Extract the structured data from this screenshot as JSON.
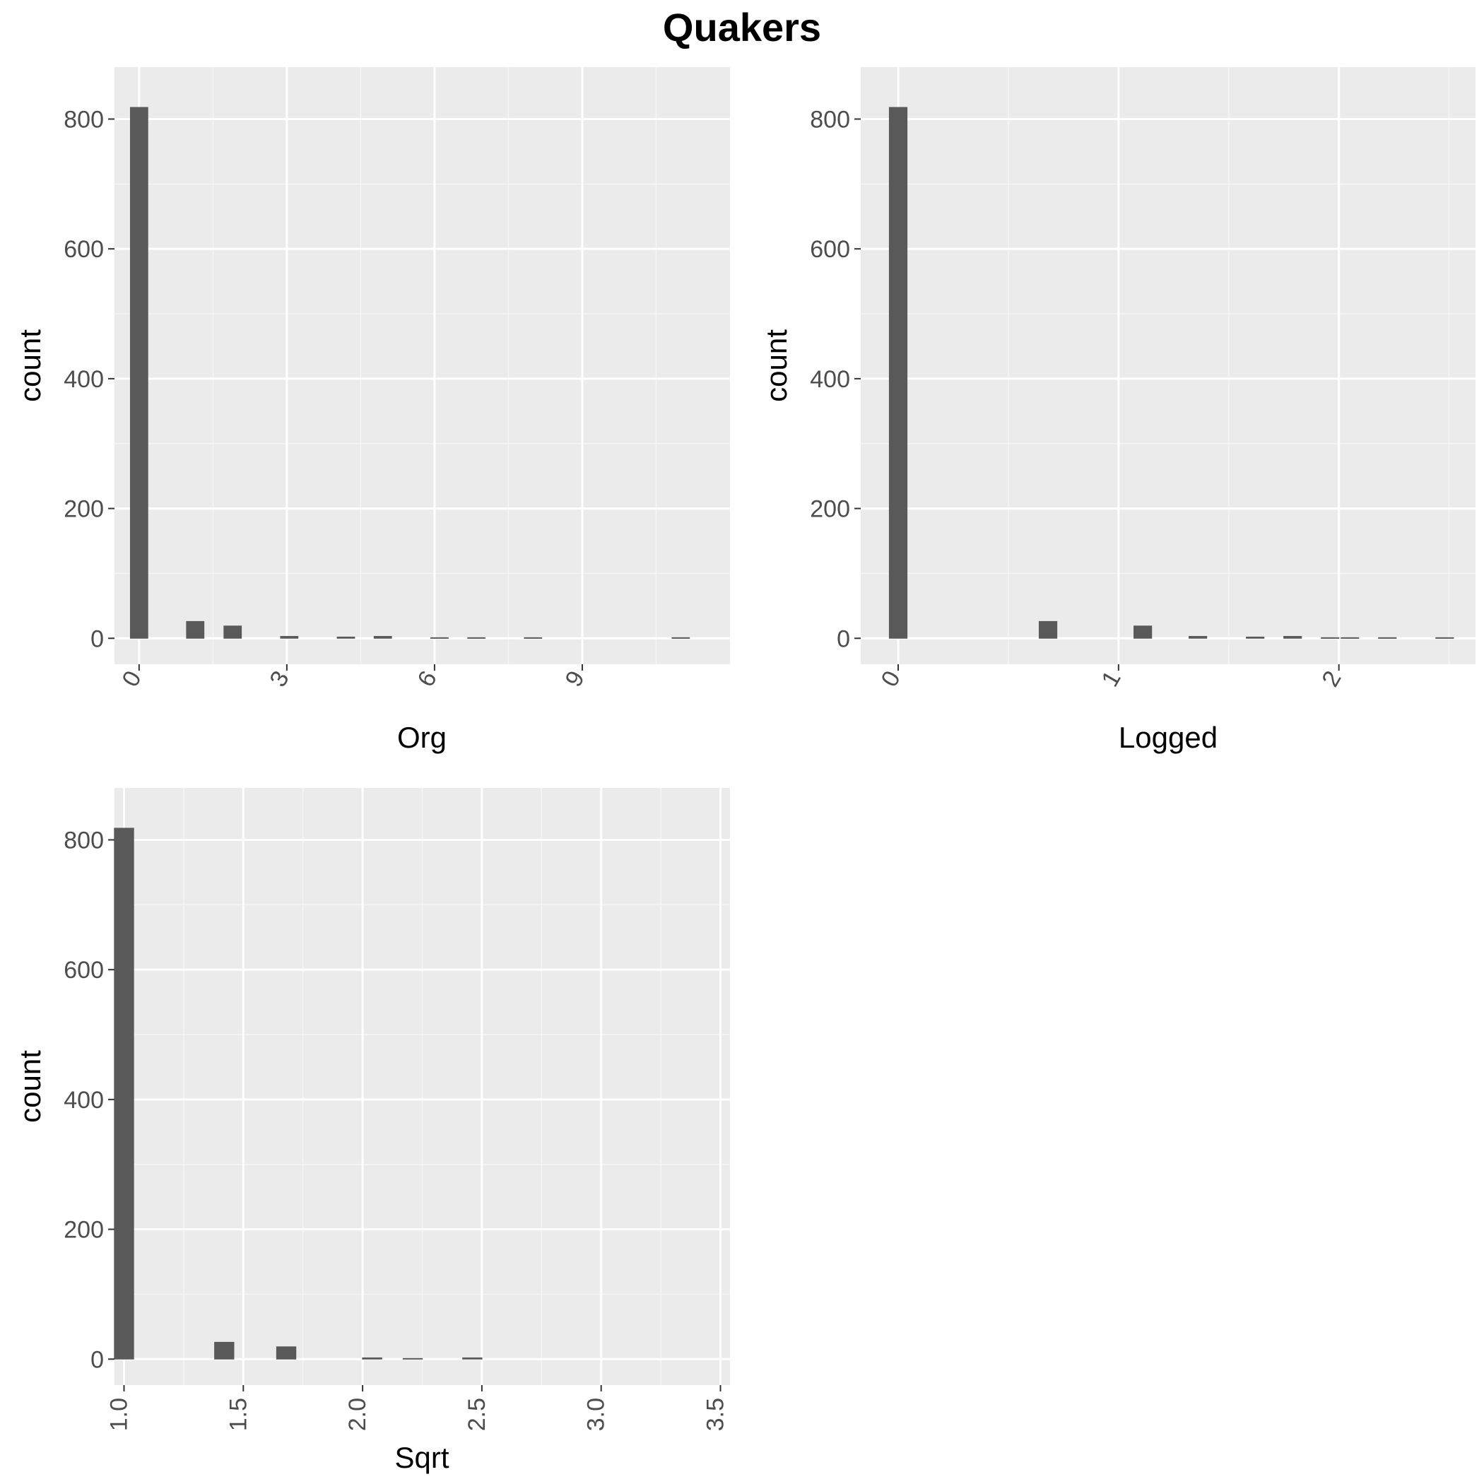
{
  "figure": {
    "title": "Quakers"
  },
  "chart_data": [
    {
      "type": "bar",
      "xlabel": "Org",
      "ylabel": "count",
      "xlim": [
        -0.5,
        12.0
      ],
      "ylim": [
        -40,
        880
      ],
      "x_ticks": [
        0,
        3,
        6,
        9
      ],
      "x_tick_labels": [
        "0",
        "3",
        "6",
        "9"
      ],
      "x_tick_rotation": 60,
      "y_ticks": [
        0,
        200,
        400,
        600,
        800
      ],
      "y_tick_labels": [
        "0",
        "200",
        "400",
        "600",
        "800"
      ],
      "grid": true,
      "bar_width": 0.37,
      "bars": [
        {
          "x": 0,
          "count": 818
        },
        {
          "x": 1.14,
          "count": 26
        },
        {
          "x": 1.9,
          "count": 19
        },
        {
          "x": 3.05,
          "count": 3
        },
        {
          "x": 4.2,
          "count": 2
        },
        {
          "x": 4.95,
          "count": 3
        },
        {
          "x": 6.1,
          "count": 1
        },
        {
          "x": 6.85,
          "count": 1
        },
        {
          "x": 8.0,
          "count": 1
        },
        {
          "x": 11.0,
          "count": 1
        }
      ]
    },
    {
      "type": "bar",
      "xlabel": "Logged",
      "ylabel": "count",
      "xlim": [
        -0.17,
        2.62
      ],
      "ylim": [
        -40,
        880
      ],
      "x_ticks": [
        0,
        1,
        2
      ],
      "x_tick_labels": [
        "0",
        "1",
        "2"
      ],
      "x_tick_rotation": 60,
      "y_ticks": [
        0,
        200,
        400,
        600,
        800
      ],
      "y_tick_labels": [
        "0",
        "200",
        "400",
        "600",
        "800"
      ],
      "grid": true,
      "bar_width": 0.084,
      "bars": [
        {
          "x": 0,
          "count": 818
        },
        {
          "x": 0.68,
          "count": 26
        },
        {
          "x": 1.11,
          "count": 19
        },
        {
          "x": 1.36,
          "count": 3
        },
        {
          "x": 1.62,
          "count": 2
        },
        {
          "x": 1.79,
          "count": 3
        },
        {
          "x": 1.96,
          "count": 1
        },
        {
          "x": 2.05,
          "count": 1
        },
        {
          "x": 2.22,
          "count": 1
        },
        {
          "x": 2.48,
          "count": 1
        }
      ]
    },
    {
      "type": "bar",
      "xlabel": "Sqrt",
      "ylabel": "count",
      "xlim": [
        0.96,
        3.54
      ],
      "ylim": [
        -40,
        880
      ],
      "x_ticks": [
        1.0,
        1.5,
        2.0,
        2.5,
        3.0,
        3.5
      ],
      "x_tick_labels": [
        "1.0",
        "1.5",
        "2.0",
        "2.5",
        "3.0",
        "3.5"
      ],
      "x_tick_rotation": 90,
      "y_ticks": [
        0,
        200,
        400,
        600,
        800
      ],
      "y_tick_labels": [
        "0",
        "200",
        "400",
        "600",
        "800"
      ],
      "grid": true,
      "bar_width": 0.084,
      "bars": [
        {
          "x": 1.0,
          "count": 818
        },
        {
          "x": 1.42,
          "count": 26
        },
        {
          "x": 1.68,
          "count": 19
        },
        {
          "x": 2.04,
          "count": 2
        },
        {
          "x": 2.21,
          "count": 1
        },
        {
          "x": 2.46,
          "count": 2
        }
      ]
    }
  ],
  "colors": {
    "panel_background": "#ebebeb",
    "grid_major": "#ffffff",
    "grid_minor": "#f5f5f5",
    "bar_fill": "#595959",
    "tick_color": "#333333",
    "tick_label": "#4d4d4d"
  }
}
